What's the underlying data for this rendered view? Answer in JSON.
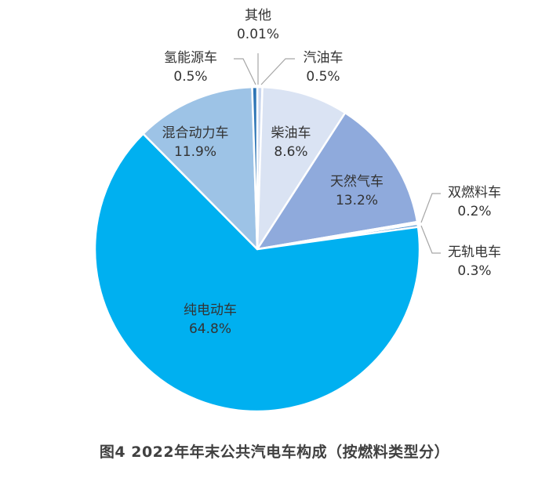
{
  "chart_data": {
    "type": "pie",
    "title": "图4   2022年年末公共汽电车构成（按燃料类型分）",
    "start_angle_deg": 0,
    "direction": "clockwise",
    "slices": [
      {
        "label": "其他",
        "value": 0.01,
        "display": "0.01%",
        "color": "#2f5597"
      },
      {
        "label": "汽油车",
        "value": 0.5,
        "display": "0.5%",
        "color": "#c9d6ee"
      },
      {
        "label": "柴油车",
        "value": 8.6,
        "display": "8.6%",
        "color": "#dae3f3"
      },
      {
        "label": "天然气车",
        "value": 13.2,
        "display": "13.2%",
        "color": "#8faadc"
      },
      {
        "label": "双燃料车",
        "value": 0.2,
        "display": "0.2%",
        "color": "#b4c7e7"
      },
      {
        "label": "无轨电车",
        "value": 0.3,
        "display": "0.3%",
        "color": "#5b9bd5"
      },
      {
        "label": "纯电动车",
        "value": 64.8,
        "display": "64.8%",
        "color": "#00b0f0"
      },
      {
        "label": "混合动力车",
        "value": 11.9,
        "display": "11.9%",
        "color": "#9dc3e6"
      },
      {
        "label": "氢能源车",
        "value": 0.5,
        "display": "0.5%",
        "color": "#2e75b6"
      }
    ]
  },
  "labels": {
    "other": {
      "name": "其他",
      "pct": "0.01%"
    },
    "gasoline": {
      "name": "汽油车",
      "pct": "0.5%"
    },
    "diesel": {
      "name": "柴油车",
      "pct": "8.6%"
    },
    "natural_gas": {
      "name": "天然气车",
      "pct": "13.2%"
    },
    "dual_fuel": {
      "name": "双燃料车",
      "pct": "0.2%"
    },
    "trolley": {
      "name": "无轨电车",
      "pct": "0.3%"
    },
    "electric": {
      "name": "纯电动车",
      "pct": "64.8%"
    },
    "hybrid": {
      "name": "混合动力车",
      "pct": "11.9%"
    },
    "hydrogen": {
      "name": "氢能源车",
      "pct": "0.5%"
    }
  },
  "caption": "图4   2022年年末公共汽电车构成（按燃料类型分）"
}
